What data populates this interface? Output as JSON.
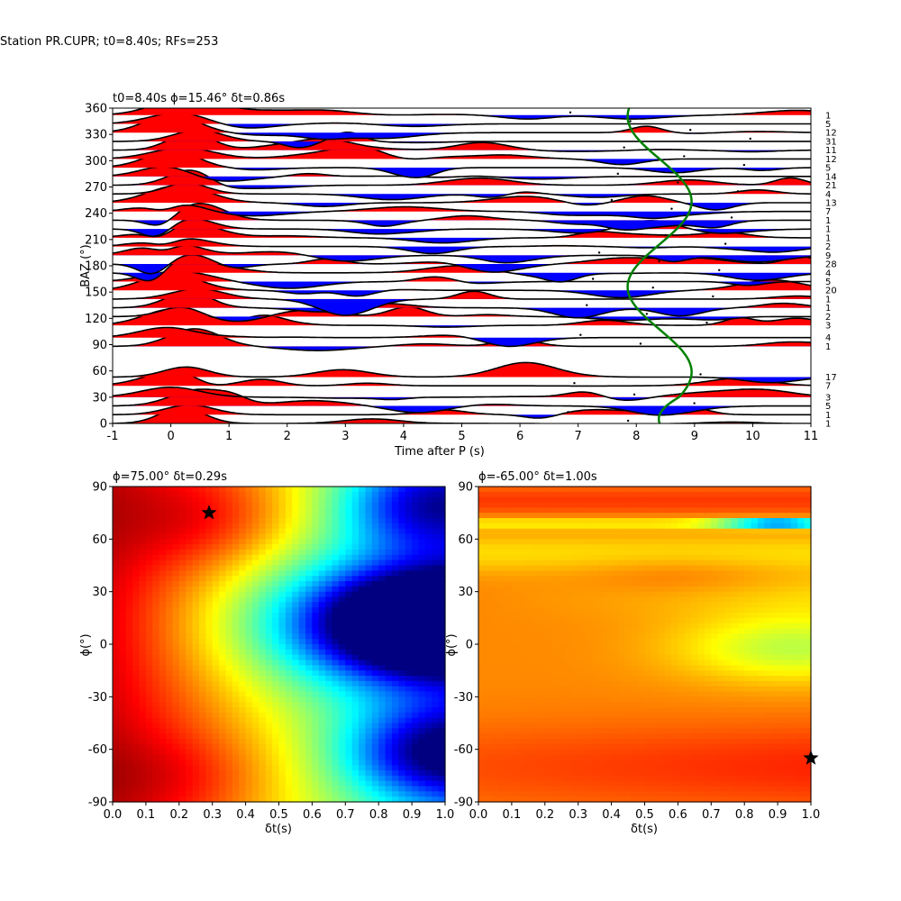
{
  "suptitle": "Station PR.CUPR; t0=8.40s; RFs=253",
  "chart_data": [
    {
      "type": "line",
      "title": "t0=8.40s ϕ=15.46° δt=0.86s",
      "xlabel": "Time after P (s)",
      "ylabel": "BAZ (°)",
      "xlim": [
        -1,
        11
      ],
      "ylim": [
        0,
        360
      ],
      "xticks": [
        -1,
        0,
        1,
        2,
        3,
        4,
        5,
        6,
        7,
        8,
        9,
        10,
        11
      ],
      "yticks": [
        0,
        30,
        60,
        90,
        120,
        150,
        180,
        210,
        240,
        270,
        300,
        330,
        360
      ],
      "fill_positive": "#ff0000",
      "fill_negative": "#0000ff",
      "curve_color": "#008000",
      "traces": [
        {
          "baz": 0,
          "count": "1"
        },
        {
          "baz": 10,
          "count": "1"
        },
        {
          "baz": 20,
          "count": "5"
        },
        {
          "baz": 30,
          "count": "3"
        },
        {
          "baz": 43,
          "count": "7"
        },
        {
          "baz": 53,
          "count": "17"
        },
        {
          "baz": 88,
          "count": "1"
        },
        {
          "baz": 98,
          "count": "4"
        },
        {
          "baz": 112,
          "count": "3"
        },
        {
          "baz": 122,
          "count": "2"
        },
        {
          "baz": 132,
          "count": "1"
        },
        {
          "baz": 142,
          "count": "1"
        },
        {
          "baz": 152,
          "count": "20"
        },
        {
          "baz": 162,
          "count": "5"
        },
        {
          "baz": 172,
          "count": "4"
        },
        {
          "baz": 182,
          "count": "28"
        },
        {
          "baz": 192,
          "count": "9"
        },
        {
          "baz": 202,
          "count": "2"
        },
        {
          "baz": 212,
          "count": "1"
        },
        {
          "baz": 222,
          "count": "1"
        },
        {
          "baz": 232,
          "count": "1"
        },
        {
          "baz": 242,
          "count": "7"
        },
        {
          "baz": 252,
          "count": "13"
        },
        {
          "baz": 262,
          "count": "4"
        },
        {
          "baz": 272,
          "count": "21"
        },
        {
          "baz": 282,
          "count": "14"
        },
        {
          "baz": 292,
          "count": "5"
        },
        {
          "baz": 302,
          "count": "12"
        },
        {
          "baz": 312,
          "count": "11"
        },
        {
          "baz": 322,
          "count": "31"
        },
        {
          "baz": 332,
          "count": "12"
        },
        {
          "baz": 342,
          "count": "5"
        },
        {
          "baz": 352,
          "count": "1"
        }
      ]
    },
    {
      "type": "heatmap",
      "title": "ϕ=75.00° δt=0.29s",
      "xlabel": "δt(s)",
      "ylabel": "ϕ(°)",
      "xlim": [
        0.0,
        1.0
      ],
      "ylim": [
        -90,
        90
      ],
      "xticks": [
        0.0,
        0.1,
        0.2,
        0.3,
        0.4,
        0.5,
        0.6,
        0.7,
        0.8,
        0.9,
        1.0
      ],
      "yticks": [
        -90,
        -60,
        -30,
        0,
        30,
        60,
        90
      ],
      "best": {
        "dt": 0.29,
        "phi": 75.0
      },
      "colormap": "jet"
    },
    {
      "type": "heatmap",
      "title": "ϕ=-65.00° δt=1.00s",
      "xlabel": "δt(s)",
      "ylabel": "ϕ(°)",
      "xlim": [
        0.0,
        1.0
      ],
      "ylim": [
        -90,
        90
      ],
      "xticks": [
        0.0,
        0.1,
        0.2,
        0.3,
        0.4,
        0.5,
        0.6,
        0.7,
        0.8,
        0.9,
        1.0
      ],
      "yticks": [
        -90,
        -60,
        -30,
        0,
        30,
        60,
        90
      ],
      "best": {
        "dt": 1.0,
        "phi": -65.0
      },
      "colormap": "jet"
    }
  ]
}
